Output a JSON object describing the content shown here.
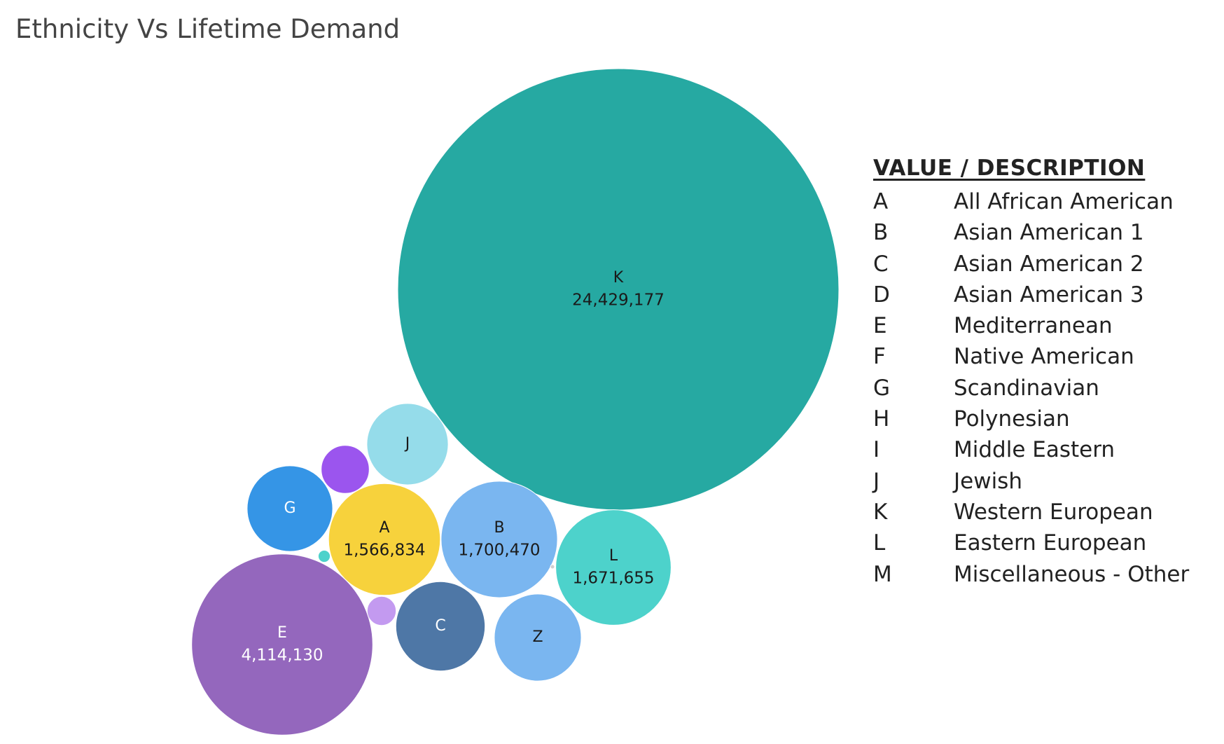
{
  "title": "Ethnicity Vs Lifetime Demand",
  "legend": {
    "header": "VALUE /  DESCRIPTION",
    "items": [
      {
        "code": "A",
        "description": "All African American"
      },
      {
        "code": "B",
        "description": "Asian American 1"
      },
      {
        "code": "C",
        "description": "Asian American 2"
      },
      {
        "code": "D",
        "description": "Asian American 3"
      },
      {
        "code": "E",
        "description": "Mediterranean"
      },
      {
        "code": "F",
        "description": "Native American"
      },
      {
        "code": "G",
        "description": "Scandinavian"
      },
      {
        "code": "H",
        "description": "Polynesian"
      },
      {
        "code": "I",
        "description": "Middle Eastern"
      },
      {
        "code": "J",
        "description": "Jewish"
      },
      {
        "code": "K",
        "description": "Western European"
      },
      {
        "code": "L",
        "description": "Eastern European"
      },
      {
        "code": "M",
        "description": "Miscellaneous - Other"
      }
    ]
  },
  "chart_data": {
    "type": "bubble",
    "title": "Ethnicity Vs Lifetime Demand",
    "measure": "Lifetime Demand",
    "bubbles": [
      {
        "label": "K",
        "value": 24429177,
        "value_label": "24,429,177",
        "color": "#26a9a2",
        "text_color": "#1a1a1a"
      },
      {
        "label": "E",
        "value": 4114130,
        "value_label": "4,114,130",
        "color": "#9467bd",
        "text_color": "#ffffff"
      },
      {
        "label": "B",
        "value": 1700470,
        "value_label": "1,700,470",
        "color": "#7ab6f0",
        "text_color": "#1a1a1a"
      },
      {
        "label": "L",
        "value": 1671655,
        "value_label": "1,671,655",
        "color": "#4dd2cb",
        "text_color": "#1a1a1a"
      },
      {
        "label": "A",
        "value": 1566834,
        "value_label": "1,566,834",
        "color": "#f7d23c",
        "text_color": "#1a1a1a"
      },
      {
        "label": "C",
        "value": 1000000,
        "value_label": "",
        "color": "#4e77a6",
        "text_color": "#ffffff"
      },
      {
        "label": "Z",
        "value": 950000,
        "value_label": "",
        "color": "#7ab6f0",
        "text_color": "#1a1a1a"
      },
      {
        "label": "G",
        "value": 920000,
        "value_label": "",
        "color": "#3595e6",
        "text_color": "#ffffff"
      },
      {
        "label": "J",
        "value": 830000,
        "value_label": "",
        "color": "#95dcea",
        "text_color": "#1a1a1a"
      },
      {
        "label": "",
        "value": 290000,
        "value_label": "",
        "color": "#9b55ee",
        "text_color": "#ffffff"
      },
      {
        "label": "",
        "value": 105000,
        "value_label": "",
        "color": "#c39af0",
        "text_color": "#ffffff"
      },
      {
        "label": "",
        "value": 18000,
        "value_label": "",
        "color": "#4dd2cb",
        "text_color": "#ffffff"
      },
      {
        "label": "",
        "value": 800,
        "value_label": "",
        "color": "#cfcfcf",
        "text_color": "#ffffff"
      }
    ]
  }
}
